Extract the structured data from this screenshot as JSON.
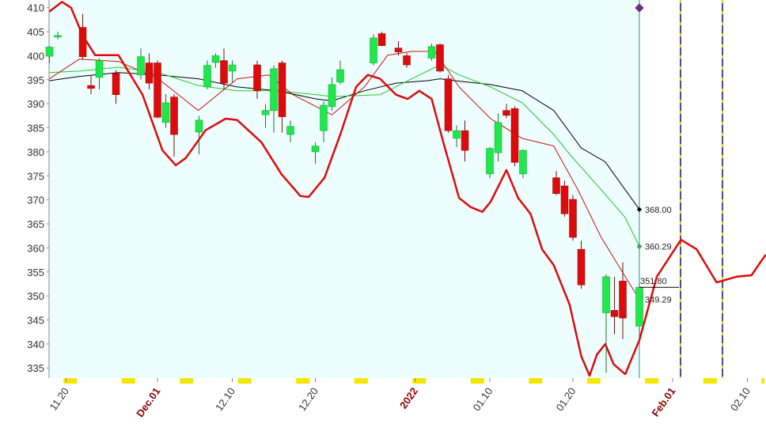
{
  "chart_data": {
    "type": "candlestick",
    "xlim": [
      -2.05,
      84.24
    ],
    "ylim": [
      332.9,
      411.6
    ],
    "yticks": [
      335,
      340,
      345,
      350,
      355,
      360,
      365,
      370,
      375,
      380,
      385,
      390,
      395,
      400,
      405,
      410
    ],
    "xticks": [
      {
        "value": 0,
        "label": "11.20",
        "major": false
      },
      {
        "value": 11,
        "label": "Dec.01",
        "major": true
      },
      {
        "value": 20,
        "label": "12.10",
        "major": false
      },
      {
        "value": 30,
        "label": "12.20",
        "major": false
      },
      {
        "value": 42,
        "label": "2022",
        "major": true
      },
      {
        "value": 51,
        "label": "01.10",
        "major": false
      },
      {
        "value": 61,
        "label": "01.20",
        "major": false
      },
      {
        "value": 73,
        "label": "Feb.01",
        "major": true
      },
      {
        "value": 82,
        "label": "02.10",
        "major": false
      }
    ],
    "up_color": "#1ee84a",
    "down_color": "#dd0b0b",
    "candles": {
      "x": [
        -2,
        -1,
        2,
        3,
        4,
        6,
        9,
        10,
        11,
        12,
        13,
        16,
        17,
        18,
        19,
        20,
        23,
        24,
        25,
        26,
        27,
        30,
        31,
        32,
        33,
        37,
        38,
        40,
        41,
        44,
        45,
        46,
        47,
        48,
        51,
        52,
        53,
        54,
        55,
        59,
        60,
        61,
        62,
        65,
        66,
        67,
        69
      ],
      "open": [
        399.9,
        403.9,
        405.9,
        393.8,
        395.5,
        396.3,
        396,
        398.5,
        398.5,
        386.1,
        391.4,
        384.1,
        393.5,
        398.6,
        399,
        396.8,
        398.1,
        387.7,
        388.6,
        398.5,
        383.6,
        380,
        384.4,
        389.4,
        394.5,
        398.5,
        404.6,
        401.6,
        400,
        399.5,
        402.3,
        395.2,
        382.8,
        384.4,
        375.4,
        379.8,
        388.6,
        389,
        375.4,
        374.6,
        372.9,
        370.1,
        359.7,
        346.5,
        347,
        353.1,
        343.7
      ],
      "high": [
        402,
        405,
        408.7,
        396,
        399.5,
        397,
        401.5,
        400.5,
        399,
        392,
        392,
        387.5,
        399,
        400.5,
        401.5,
        399,
        399,
        390,
        398,
        399,
        386.5,
        382,
        390.5,
        395.5,
        399,
        404.5,
        405,
        403,
        400.5,
        402.5,
        402.5,
        396,
        385.5,
        386.5,
        381,
        388,
        390,
        389.5,
        380.5,
        376,
        374,
        371,
        361.5,
        354.5,
        354,
        357,
        352.5
      ],
      "low": [
        398.5,
        403.4,
        399.2,
        392,
        393,
        390,
        395,
        393,
        387,
        385,
        379,
        379.5,
        393,
        397.5,
        393,
        394.5,
        391,
        385,
        384,
        384,
        382,
        377.5,
        382,
        388.5,
        394,
        398,
        402,
        400,
        397.5,
        399,
        396.5,
        384,
        381,
        378,
        374.5,
        378,
        387,
        377,
        374.5,
        371,
        366.5,
        361.5,
        351.5,
        334,
        342,
        341,
        342
      ],
      "close": [
        401.8,
        404.2,
        399.8,
        393.2,
        399,
        391.9,
        399.8,
        394.3,
        387.2,
        390.2,
        383.6,
        386.6,
        398,
        400,
        394.3,
        398.1,
        392.7,
        388.6,
        397.3,
        387.3,
        385.3,
        381.2,
        389.7,
        394,
        397.1,
        403.7,
        402.1,
        400.8,
        398.1,
        401.9,
        396.8,
        384.4,
        384.4,
        380.3,
        380.7,
        386.1,
        387.6,
        377.8,
        380.3,
        371.3,
        367.1,
        362.2,
        352.3,
        354,
        345.7,
        345.4,
        351.8
      ],
      "last_label": "351.80"
    },
    "series": [
      {
        "color": "#000000",
        "width": 1,
        "x": [
          -2,
          1.6,
          6.3,
          11.1,
          15.9,
          20.6,
          25.4,
          30.1,
          32,
          35.9,
          39.7,
          43.5,
          45,
          47.3,
          51.1,
          54.9,
          58.7,
          62,
          64.9,
          67.3,
          69
        ],
        "values": [
          394.8,
          395.7,
          396.5,
          396,
          395.2,
          393.5,
          392.7,
          391,
          390.6,
          392.7,
          394.3,
          394.8,
          395.2,
          394.7,
          394,
          392.7,
          388.6,
          380.8,
          377.9,
          372.1,
          368.0
        ],
        "last_label": "368.00"
      },
      {
        "color": "#22c832",
        "width": 1,
        "x": [
          -2,
          1.6,
          6.3,
          11.1,
          15.9,
          20.6,
          25.4,
          30.1,
          32,
          37.8,
          41.6,
          45,
          47.3,
          51.1,
          54.9,
          58.7,
          60.6,
          64.4,
          67.3,
          69
        ],
        "values": [
          396.5,
          396.8,
          397.6,
          396.5,
          393.8,
          392.7,
          392.7,
          391.9,
          391.5,
          391.9,
          395.2,
          398.1,
          396,
          393.5,
          390.2,
          383.6,
          379.5,
          372.1,
          366.3,
          360.29
        ],
        "last_label": "360.29"
      },
      {
        "color": "#cc1010",
        "width": 1,
        "x": [
          -2,
          1.6,
          6.3,
          11.1,
          15.9,
          20.6,
          24.4,
          27.3,
          30.1,
          32,
          35.9,
          38.7,
          41.6,
          44.4,
          47.3,
          51.1,
          54.9,
          58.7,
          61.6,
          64.4,
          67.3,
          69
        ],
        "values": [
          395.2,
          399.3,
          398.8,
          395.2,
          388.6,
          395.2,
          396,
          391.9,
          389.4,
          387.7,
          393.5,
          400.1,
          400.9,
          400.9,
          393.5,
          386.9,
          382.8,
          381.2,
          372.1,
          362.2,
          354,
          349.29
        ],
        "last_label": "349.29"
      },
      {
        "color": "#dd0b0b",
        "width": 2.5,
        "x": [
          -2,
          -0.5,
          0.6,
          2,
          3.5,
          6.3,
          9.2,
          11.6,
          13.2,
          14.4,
          16.8,
          19.2,
          20.6,
          23.5,
          25.9,
          28.2,
          29.2,
          31.1,
          33,
          34.9,
          36.3,
          37.8,
          39.7,
          41.1,
          42.5,
          44,
          45.4,
          47.3,
          48.7,
          50.1,
          51.1,
          53,
          54.4,
          55.9,
          57.3,
          58.7,
          60.6,
          62,
          63,
          63.9,
          64.9,
          65.9,
          67.3,
          69,
          71.1,
          74,
          75.9,
          78.3,
          80.7,
          82.5,
          84.2
        ],
        "values": [
          409.2,
          411.2,
          410,
          404.2,
          400.1,
          400.1,
          391.9,
          380.3,
          377.2,
          378.7,
          384.5,
          386.9,
          386.6,
          382,
          375.4,
          370.8,
          370.6,
          374.6,
          383.6,
          393.5,
          396,
          395.2,
          391.9,
          391,
          392.7,
          391,
          382,
          370.4,
          368.5,
          367.5,
          369.6,
          376.2,
          370.4,
          367.1,
          359.7,
          356.4,
          348.2,
          337.5,
          333.4,
          337.8,
          340,
          335.8,
          333.7,
          340.8,
          354,
          361.7,
          359.7,
          352.8,
          354,
          354.3,
          358.6
        ]
      }
    ]
  }
}
